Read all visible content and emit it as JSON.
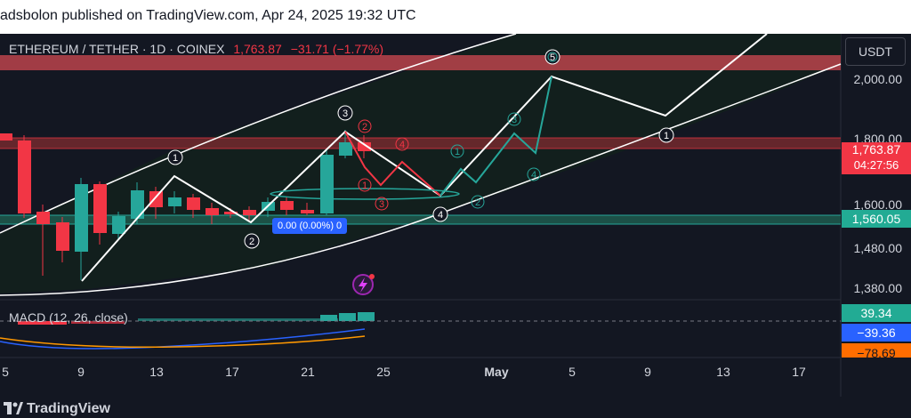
{
  "header": {
    "published": "adsbolon published on TradingView.com, Apr 24, 2025 19:32 UTC"
  },
  "legend": {
    "symbol": "ETHEREUM / TETHER · 1D · COINEX",
    "last": "1,763.87",
    "change": "−31.71 (−1.77%)"
  },
  "currency_button": "USDT",
  "price_axis": [
    "2,000.00",
    "1,800.00",
    "1,600.00",
    "1,480.00",
    "1,380.00"
  ],
  "price_tags": {
    "last": "1,763.87",
    "countdown": "04:27:56",
    "support": "1,560.05"
  },
  "range_tag": "0.00 (0.00%) 0",
  "macd": {
    "label": "MACD (12, 26, close)",
    "histogram": "39.34",
    "macd": "−39.36",
    "signal": "−78.69"
  },
  "time_axis": [
    "5",
    "9",
    "13",
    "17",
    "21",
    "25",
    "May",
    "5",
    "9",
    "13",
    "17"
  ],
  "wave_labels": {
    "main": [
      "1",
      "2",
      "3",
      "4",
      "5",
      "1"
    ],
    "sub": [
      "1",
      "2",
      "3",
      "4",
      "5"
    ]
  },
  "brand": "TradingView",
  "colors": {
    "up": "#26a69a",
    "down": "#f23645",
    "background": "#131722"
  }
}
